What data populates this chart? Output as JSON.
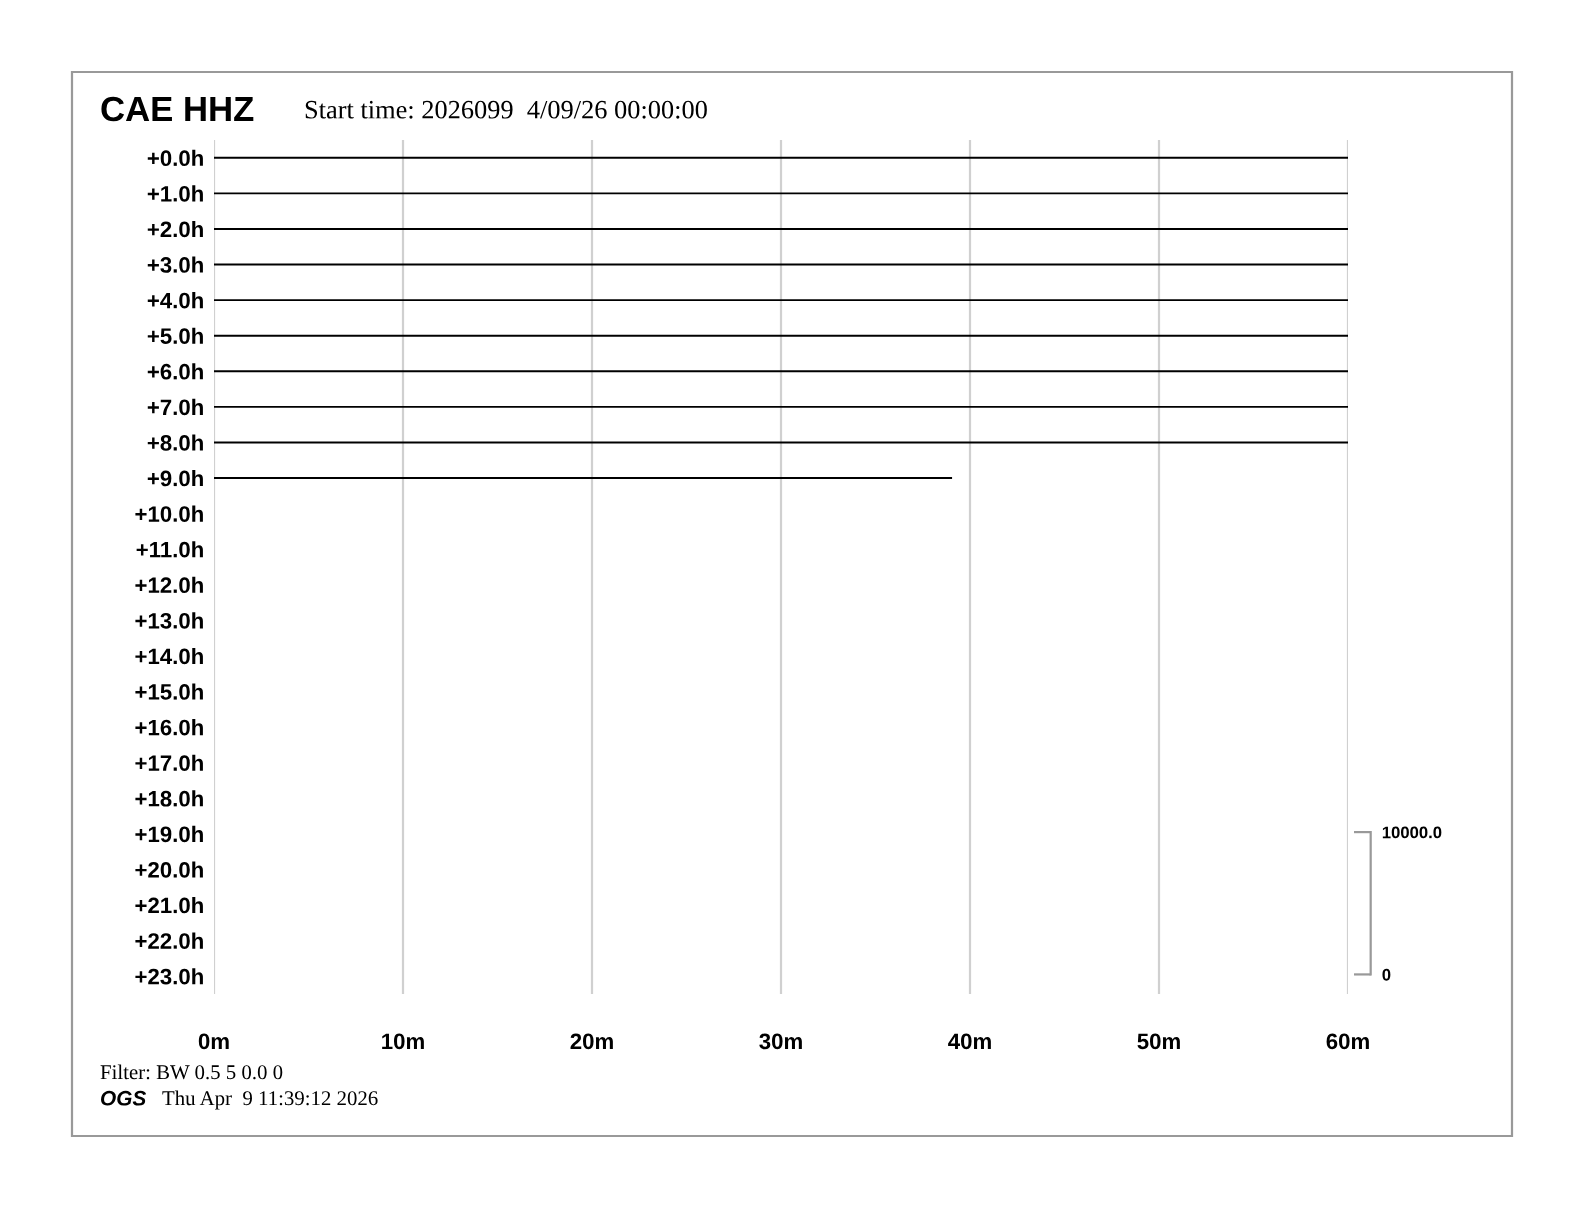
{
  "chart_data": {
    "type": "line",
    "title": "CAE HHZ",
    "subtitle": "Start time: 2026099  4/09/26 00:00:00",
    "annotations": [
      "Filter: BW 0.5 5 0.0 0",
      "OGS",
      "Thu Apr  9 11:39:12 2026"
    ],
    "series": [
      {
        "color": "#000000",
        "x": [
          0,
          60
        ],
        "values": [
          0,
          0
        ]
      },
      {
        "color": "#000000",
        "x": [
          0,
          60
        ],
        "values": [
          1,
          1
        ]
      },
      {
        "color": "#000000",
        "x": [
          0,
          60
        ],
        "values": [
          2,
          2
        ]
      },
      {
        "color": "#000000",
        "x": [
          0,
          60
        ],
        "values": [
          3,
          3
        ]
      },
      {
        "color": "#000000",
        "x": [
          0,
          60
        ],
        "values": [
          4,
          4
        ]
      },
      {
        "color": "#000000",
        "x": [
          0,
          60
        ],
        "values": [
          5,
          5
        ]
      },
      {
        "color": "#000000",
        "x": [
          0,
          60
        ],
        "values": [
          6,
          6
        ]
      },
      {
        "color": "#000000",
        "x": [
          0,
          60
        ],
        "values": [
          7,
          7
        ]
      },
      {
        "color": "#000000",
        "x": [
          0,
          60
        ],
        "values": [
          8,
          8
        ]
      },
      {
        "color": "#000000",
        "x": [
          0,
          39
        ],
        "values": [
          9,
          9
        ]
      }
    ],
    "xlim": [
      0,
      60
    ],
    "xticks": [
      {
        "value": 0,
        "label": "0m"
      },
      {
        "value": 10,
        "label": "10m"
      },
      {
        "value": 20,
        "label": "20m"
      },
      {
        "value": 30,
        "label": "30m"
      },
      {
        "value": 40,
        "label": "40m"
      },
      {
        "value": 50,
        "label": "50m"
      },
      {
        "value": 60,
        "label": "60m"
      }
    ],
    "ylim": [
      23.5,
      -0.5
    ],
    "yticks": [
      {
        "value": 0,
        "label": "+0.0h"
      },
      {
        "value": 1,
        "label": "+1.0h"
      },
      {
        "value": 2,
        "label": "+2.0h"
      },
      {
        "value": 3,
        "label": "+3.0h"
      },
      {
        "value": 4,
        "label": "+4.0h"
      },
      {
        "value": 5,
        "label": "+5.0h"
      },
      {
        "value": 6,
        "label": "+6.0h"
      },
      {
        "value": 7,
        "label": "+7.0h"
      },
      {
        "value": 8,
        "label": "+8.0h"
      },
      {
        "value": 9,
        "label": "+9.0h"
      },
      {
        "value": 10,
        "label": "+10.0h"
      },
      {
        "value": 11,
        "label": "+11.0h"
      },
      {
        "value": 12,
        "label": "+12.0h"
      },
      {
        "value": 13,
        "label": "+13.0h"
      },
      {
        "value": 14,
        "label": "+14.0h"
      },
      {
        "value": 15,
        "label": "+15.0h"
      },
      {
        "value": 16,
        "label": "+16.0h"
      },
      {
        "value": 17,
        "label": "+17.0h"
      },
      {
        "value": 18,
        "label": "+18.0h"
      },
      {
        "value": 19,
        "label": "+19.0h"
      },
      {
        "value": 20,
        "label": "+20.0h"
      },
      {
        "value": 21,
        "label": "+21.0h"
      },
      {
        "value": 22,
        "label": "+22.0h"
      },
      {
        "value": 23,
        "label": "+23.0h"
      }
    ],
    "y2lim": [
      -1375,
      58625
    ],
    "y2ticks": [
      0,
      {
        "value": 10000,
        "label": "10000.0"
      }
    ],
    "grid": "x",
    "marker": "none",
    "line_style": "solid"
  }
}
